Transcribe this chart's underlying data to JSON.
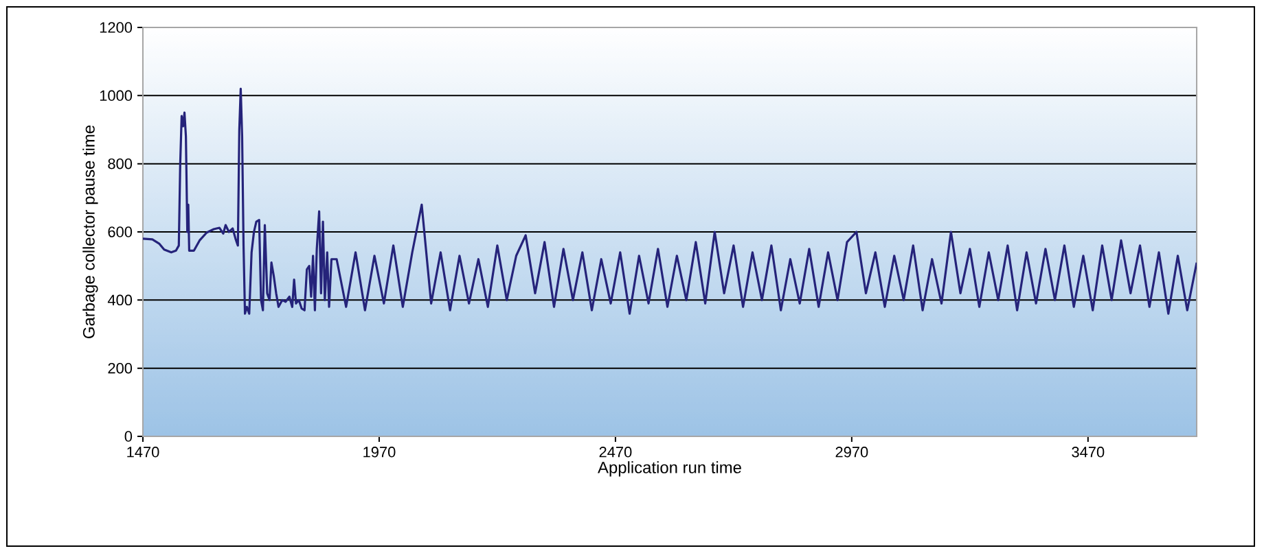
{
  "chart_data": {
    "type": "line",
    "xlabel": "Application run time",
    "ylabel": "Garbage collector pause time",
    "xlim": [
      1470,
      3700
    ],
    "ylim": [
      0,
      1200
    ],
    "xticks": [
      1470,
      1970,
      2470,
      2970,
      3470
    ],
    "yticks": [
      0,
      200,
      400,
      600,
      800,
      1000,
      1200
    ],
    "grid": "y",
    "series": [
      {
        "color": "#25237a",
        "x": [
          1470,
          1490,
          1505,
          1515,
          1530,
          1540,
          1546,
          1549,
          1552,
          1555,
          1558,
          1561,
          1564,
          1566,
          1568,
          1578,
          1590,
          1605,
          1620,
          1632,
          1640,
          1645,
          1652,
          1660,
          1666,
          1671,
          1674,
          1677,
          1680,
          1683,
          1686,
          1690,
          1695,
          1700,
          1705,
          1710,
          1716,
          1720,
          1724,
          1728,
          1733,
          1738,
          1742,
          1747,
          1752,
          1757,
          1765,
          1772,
          1780,
          1786,
          1790,
          1794,
          1800,
          1806,
          1812,
          1817,
          1822,
          1826,
          1830,
          1834,
          1838,
          1843,
          1847,
          1851,
          1855,
          1860,
          1864,
          1869,
          1880,
          1900,
          1920,
          1940,
          1960,
          1980,
          2000,
          2020,
          2040,
          2060,
          2080,
          2100,
          2120,
          2140,
          2160,
          2180,
          2200,
          2220,
          2240,
          2260,
          2280,
          2300,
          2320,
          2340,
          2360,
          2380,
          2400,
          2420,
          2440,
          2460,
          2480,
          2500,
          2520,
          2540,
          2560,
          2580,
          2600,
          2620,
          2640,
          2660,
          2680,
          2700,
          2720,
          2740,
          2760,
          2780,
          2800,
          2820,
          2840,
          2860,
          2880,
          2900,
          2920,
          2940,
          2960,
          2980,
          3000,
          3020,
          3040,
          3060,
          3080,
          3100,
          3120,
          3140,
          3160,
          3180,
          3200,
          3220,
          3240,
          3260,
          3280,
          3300,
          3320,
          3340,
          3360,
          3380,
          3400,
          3420,
          3440,
          3460,
          3480,
          3500,
          3520,
          3540,
          3560,
          3580,
          3600,
          3620,
          3640,
          3660,
          3680,
          3700
        ],
        "values": [
          580,
          578,
          565,
          548,
          540,
          545,
          560,
          800,
          940,
          910,
          950,
          880,
          600,
          680,
          545,
          545,
          575,
          598,
          608,
          612,
          595,
          620,
          600,
          610,
          580,
          560,
          900,
          1020,
          880,
          560,
          360,
          380,
          360,
          540,
          600,
          630,
          635,
          400,
          370,
          620,
          420,
          400,
          510,
          470,
          420,
          380,
          400,
          395,
          410,
          380,
          460,
          390,
          400,
          375,
          370,
          490,
          500,
          410,
          530,
          370,
          550,
          660,
          420,
          630,
          400,
          540,
          380,
          520,
          520,
          380,
          540,
          370,
          530,
          390,
          560,
          380,
          540,
          680,
          390,
          540,
          370,
          530,
          390,
          520,
          380,
          560,
          400,
          530,
          590,
          420,
          570,
          380,
          550,
          400,
          540,
          370,
          520,
          390,
          540,
          360,
          530,
          390,
          550,
          380,
          530,
          400,
          570,
          390,
          600,
          420,
          560,
          380,
          540,
          400,
          560,
          370,
          520,
          390,
          550,
          380,
          540,
          400,
          570,
          600,
          420,
          540,
          380,
          530,
          400,
          560,
          370,
          520,
          390,
          600,
          420,
          550,
          380,
          540,
          400,
          560,
          370,
          540,
          390,
          550,
          400,
          560,
          380,
          530,
          370,
          560,
          400,
          575,
          420,
          560,
          380,
          540,
          360,
          530,
          370,
          510
        ]
      }
    ]
  }
}
